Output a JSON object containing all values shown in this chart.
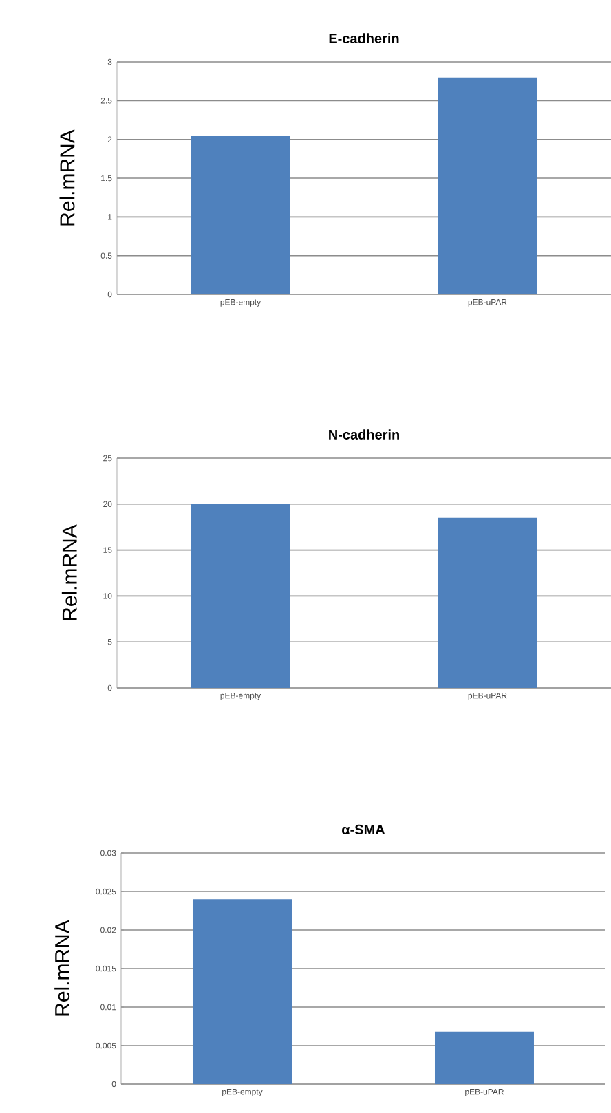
{
  "chart_data": [
    {
      "type": "bar",
      "title": "E-cadherin",
      "ylabel": "Rel.mRNA",
      "categories": [
        "pEB-empty",
        "pEB-uPAR"
      ],
      "values": [
        2.05,
        2.8
      ],
      "color": "#4f81bd",
      "ylim": [
        0,
        3
      ],
      "yticks": [
        0,
        0.5,
        1,
        1.5,
        2,
        2.5,
        3
      ],
      "grid": "y"
    },
    {
      "type": "bar",
      "title": "N-cadherin",
      "ylabel": "Rel.mRNA",
      "categories": [
        "pEB-empty",
        "pEB-uPAR"
      ],
      "values": [
        20,
        18.5
      ],
      "color": "#4f81bd",
      "ylim": [
        0,
        25
      ],
      "yticks": [
        0,
        5,
        10,
        15,
        20,
        25
      ],
      "grid": "y"
    },
    {
      "type": "bar",
      "title": "α-SMA",
      "ylabel": "Rel.mRNA",
      "categories": [
        "pEB-empty",
        "pEB-uPAR"
      ],
      "values": [
        0.024,
        0.0068
      ],
      "color": "#4f81bd",
      "ylim": [
        0,
        0.03
      ],
      "yticks": [
        0,
        0.005,
        0.01,
        0.015,
        0.02,
        0.025,
        0.03
      ],
      "grid": "y"
    }
  ]
}
